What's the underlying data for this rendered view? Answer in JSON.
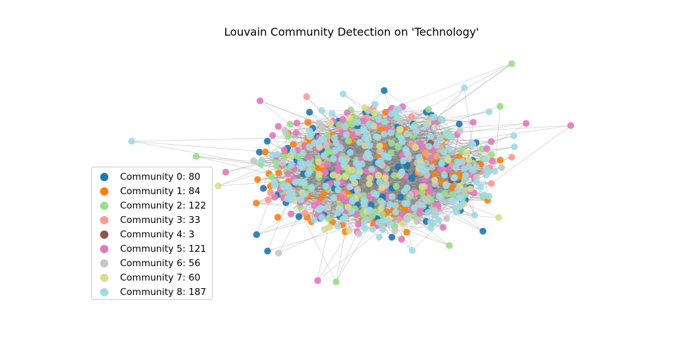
{
  "chart_data": {
    "type": "scatter",
    "title": "Louvain Community Detection on 'Technology'",
    "legend_placement": "center-left",
    "axes_visible": false,
    "grid": false,
    "edge_color": "#808080",
    "communities": [
      {
        "name": "Community 0: 80",
        "count": 80,
        "color": "#1f77b4"
      },
      {
        "name": "Community 1: 84",
        "count": 84,
        "color": "#ff7f0e"
      },
      {
        "name": "Community 2: 122",
        "count": 122,
        "color": "#98df8a"
      },
      {
        "name": "Community 3: 33",
        "count": 33,
        "color": "#ff9896"
      },
      {
        "name": "Community 4: 3",
        "count": 3,
        "color": "#8c564b"
      },
      {
        "name": "Community 5: 121",
        "count": 121,
        "color": "#e377c2"
      },
      {
        "name": "Community 6: 56",
        "count": 56,
        "color": "#c7c7c7"
      },
      {
        "name": "Community 7: 60",
        "count": 60,
        "color": "#dbdb8d"
      },
      {
        "name": "Community 8: 187",
        "count": 187,
        "color": "#9edae5"
      }
    ]
  }
}
